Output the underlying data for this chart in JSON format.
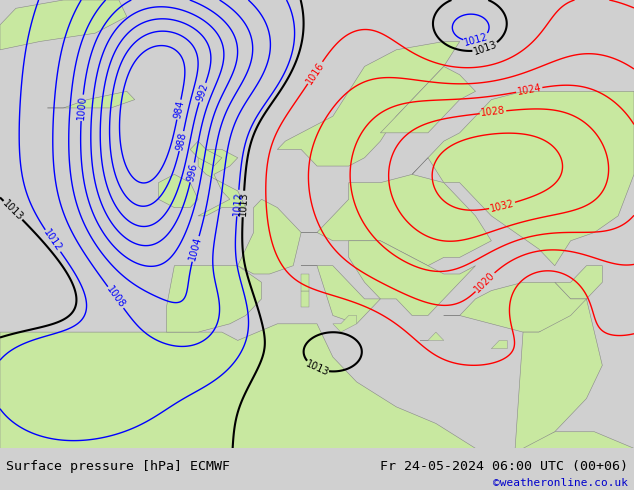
{
  "title_left": "Surface pressure [hPa] ECMWF",
  "title_right": "Fr 24-05-2024 06:00 UTC (00+06)",
  "credit": "©weatheronline.co.uk",
  "bg_map_color": "#c8e8a0",
  "bg_sea_color": "#d8d8d8",
  "bg_land_gray": "#b0b0b0",
  "bottom_bar_color": "#d0d0d0",
  "title_fontsize": 9.5,
  "credit_color": "#0000cc",
  "figsize": [
    6.34,
    4.9
  ],
  "dpi": 100,
  "pressure_levels_blue": [
    984,
    988,
    992,
    996,
    1000,
    1004,
    1008,
    1012
  ],
  "pressure_levels_red": [
    1016,
    1020,
    1024,
    1028,
    1032
  ],
  "pressure_level_black": [
    1013
  ],
  "label_fontsize": 7,
  "contour_lw_blue": 1.0,
  "contour_lw_red": 1.0,
  "contour_lw_black": 1.5
}
